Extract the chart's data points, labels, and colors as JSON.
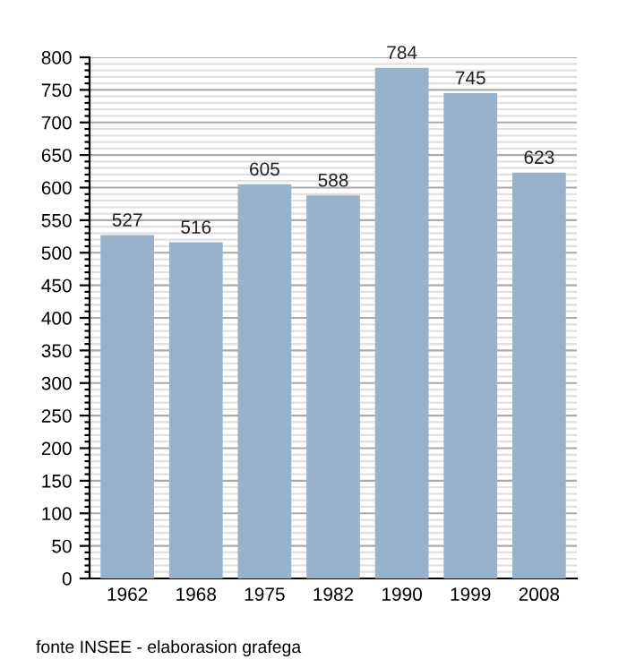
{
  "chart_data": {
    "type": "bar",
    "categories": [
      "1962",
      "1968",
      "1975",
      "1982",
      "1990",
      "1999",
      "2008"
    ],
    "values": [
      527,
      516,
      605,
      588,
      784,
      745,
      623
    ],
    "color": "#98b2cc",
    "data_labels": true,
    "ylim": [
      0,
      800
    ],
    "yticks": [
      0,
      {
        "value": 10,
        "label": null
      },
      {
        "value": 20,
        "label": null
      },
      {
        "value": 30,
        "label": null
      },
      {
        "value": 40,
        "label": null
      },
      50,
      {
        "value": 60,
        "label": null
      },
      {
        "value": 70,
        "label": null
      },
      {
        "value": 80,
        "label": null
      },
      {
        "value": 90,
        "label": null
      },
      100,
      {
        "value": 110,
        "label": null
      },
      {
        "value": 120,
        "label": null
      },
      {
        "value": 130,
        "label": null
      },
      {
        "value": 140,
        "label": null
      },
      150,
      {
        "value": 160,
        "label": null
      },
      {
        "value": 170,
        "label": null
      },
      {
        "value": 180,
        "label": null
      },
      {
        "value": 190,
        "label": null
      },
      200,
      {
        "value": 210,
        "label": null
      },
      {
        "value": 220,
        "label": null
      },
      {
        "value": 230,
        "label": null
      },
      {
        "value": 240,
        "label": null
      },
      250,
      {
        "value": 260,
        "label": null
      },
      {
        "value": 270,
        "label": null
      },
      {
        "value": 280,
        "label": null
      },
      {
        "value": 290,
        "label": null
      },
      300,
      {
        "value": 310,
        "label": null
      },
      {
        "value": 320,
        "label": null
      },
      {
        "value": 330,
        "label": null
      },
      {
        "value": 340,
        "label": null
      },
      350,
      {
        "value": 360,
        "label": null
      },
      {
        "value": 370,
        "label": null
      },
      {
        "value": 380,
        "label": null
      },
      {
        "value": 390,
        "label": null
      },
      400,
      {
        "value": 410,
        "label": null
      },
      {
        "value": 420,
        "label": null
      },
      {
        "value": 430,
        "label": null
      },
      {
        "value": 440,
        "label": null
      },
      450,
      {
        "value": 460,
        "label": null
      },
      {
        "value": 470,
        "label": null
      },
      {
        "value": 480,
        "label": null
      },
      {
        "value": 490,
        "label": null
      },
      500,
      {
        "value": 510,
        "label": null
      },
      {
        "value": 520,
        "label": null
      },
      {
        "value": 530,
        "label": null
      },
      {
        "value": 540,
        "label": null
      },
      550,
      {
        "value": 560,
        "label": null
      },
      {
        "value": 570,
        "label": null
      },
      {
        "value": 580,
        "label": null
      },
      {
        "value": 590,
        "label": null
      },
      600,
      {
        "value": 610,
        "label": null
      },
      {
        "value": 620,
        "label": null
      },
      {
        "value": 630,
        "label": null
      },
      {
        "value": 640,
        "label": null
      },
      650,
      {
        "value": 660,
        "label": null
      },
      {
        "value": 670,
        "label": null
      },
      {
        "value": 680,
        "label": null
      },
      {
        "value": 690,
        "label": null
      },
      700,
      {
        "value": 710,
        "label": null
      },
      {
        "value": 720,
        "label": null
      },
      {
        "value": 730,
        "label": null
      },
      {
        "value": 740,
        "label": null
      },
      750,
      {
        "value": 760,
        "label": null
      },
      {
        "value": 770,
        "label": null
      },
      {
        "value": 780,
        "label": null
      },
      {
        "value": 790,
        "label": null
      },
      800
    ],
    "grid": "y",
    "annotations": [
      "fonte INSEE - elaborasion grafega"
    ]
  }
}
